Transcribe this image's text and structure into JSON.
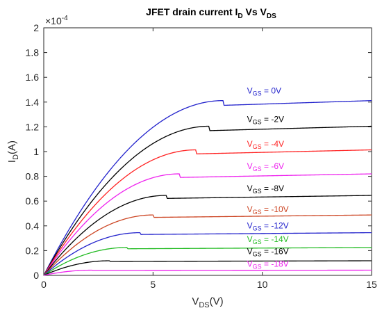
{
  "chart_data": {
    "type": "line",
    "title": {
      "main": "JFET drain current I",
      "sub1": "D",
      "mid": " Vs V",
      "sub2": "DS"
    },
    "xlabel": {
      "main": "V",
      "sub": "DS",
      "tail": "(V)"
    },
    "ylabel": {
      "main": "I",
      "sub": "D",
      "tail": "(A)"
    },
    "xlim": [
      0,
      15
    ],
    "ylim": [
      0,
      2
    ],
    "y_exponent": {
      "base": "×10",
      "power": "-4"
    },
    "x_ticks": [
      "0",
      "5",
      "10",
      "15"
    ],
    "y_ticks": [
      "0",
      "0.2",
      "0.4",
      "0.6",
      "0.8",
      "1",
      "1.2",
      "1.4",
      "1.6",
      "1.8",
      "2"
    ],
    "grid": false,
    "box": true,
    "series": [
      {
        "label_main": "V",
        "label_sub": "GS",
        "label_tail": " = 0V",
        "idss": 1.412,
        "vp": 8.2,
        "label_x": 9.3,
        "label_y": 1.47,
        "color": "#2222cc"
      },
      {
        "label_main": "V",
        "label_sub": "GS",
        "label_tail": " = -2V",
        "idss": 1.205,
        "vp": 7.58,
        "label_x": 9.3,
        "label_y": 1.24,
        "color": "#000000"
      },
      {
        "label_main": "V",
        "label_sub": "GS",
        "label_tail": " = -4V",
        "idss": 1.014,
        "vp": 6.96,
        "label_x": 9.3,
        "label_y": 1.04,
        "color": "#ff2222"
      },
      {
        "label_main": "V",
        "label_sub": "GS",
        "label_tail": " = -6V",
        "idss": 0.82,
        "vp": 6.2,
        "label_x": 9.3,
        "label_y": 0.86,
        "color": "#ee22ee"
      },
      {
        "label_main": "V",
        "label_sub": "GS",
        "label_tail": " = -8V",
        "idss": 0.646,
        "vp": 5.6,
        "label_x": 9.3,
        "label_y": 0.68,
        "color": "#000000"
      },
      {
        "label_main": "V",
        "label_sub": "GS",
        "label_tail": " = -10V",
        "idss": 0.488,
        "vp": 5.0,
        "label_x": 9.3,
        "label_y": 0.51,
        "color": "#cc4422"
      },
      {
        "label_main": "V",
        "label_sub": "GS",
        "label_tail": " = -12V",
        "idss": 0.345,
        "vp": 4.4,
        "label_x": 9.3,
        "label_y": 0.38,
        "color": "#2222cc"
      },
      {
        "label_main": "V",
        "label_sub": "GS",
        "label_tail": " = -14V",
        "idss": 0.225,
        "vp": 3.8,
        "label_x": 9.3,
        "label_y": 0.27,
        "color": "#22bb22"
      },
      {
        "label_main": "V",
        "label_sub": "GS",
        "label_tail": " = -16V",
        "idss": 0.118,
        "vp": 3.0,
        "label_x": 9.3,
        "label_y": 0.17,
        "color": "#000000"
      },
      {
        "label_main": "V",
        "label_sub": "GS",
        "label_tail": " = -18V",
        "idss": 0.042,
        "vp": 2.2,
        "label_x": 9.3,
        "label_y": 0.07,
        "color": "#ee22ee"
      }
    ]
  }
}
